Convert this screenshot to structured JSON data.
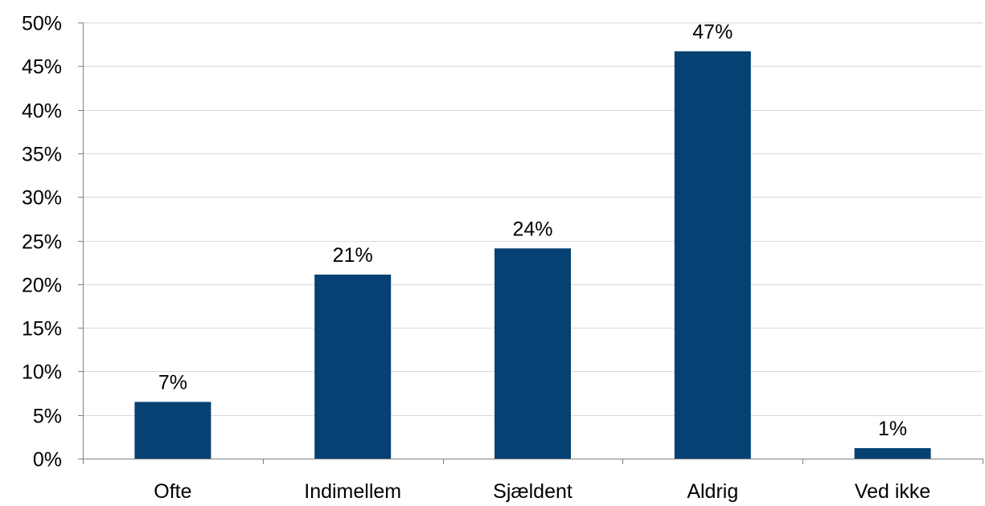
{
  "chart_data": {
    "type": "bar",
    "categories": [
      "Ofte",
      "Indimellem",
      "Sjældent",
      "Aldrig",
      "Ved ikke"
    ],
    "values": [
      6.5,
      21.1,
      24.1,
      46.7,
      1.2
    ],
    "data_labels": [
      "7%",
      "21%",
      "24%",
      "47%",
      "1%"
    ],
    "ylim": [
      0,
      50
    ],
    "y_ticks": [
      0,
      5,
      10,
      15,
      20,
      25,
      30,
      35,
      40,
      45,
      50
    ],
    "y_tick_labels": [
      "0%",
      "5%",
      "10%",
      "15%",
      "20%",
      "25%",
      "30%",
      "35%",
      "40%",
      "45%",
      "50%"
    ],
    "grid": true,
    "bar_color": "#054172",
    "grid_color": "#d9d9d9",
    "axis_color": "#808080"
  }
}
